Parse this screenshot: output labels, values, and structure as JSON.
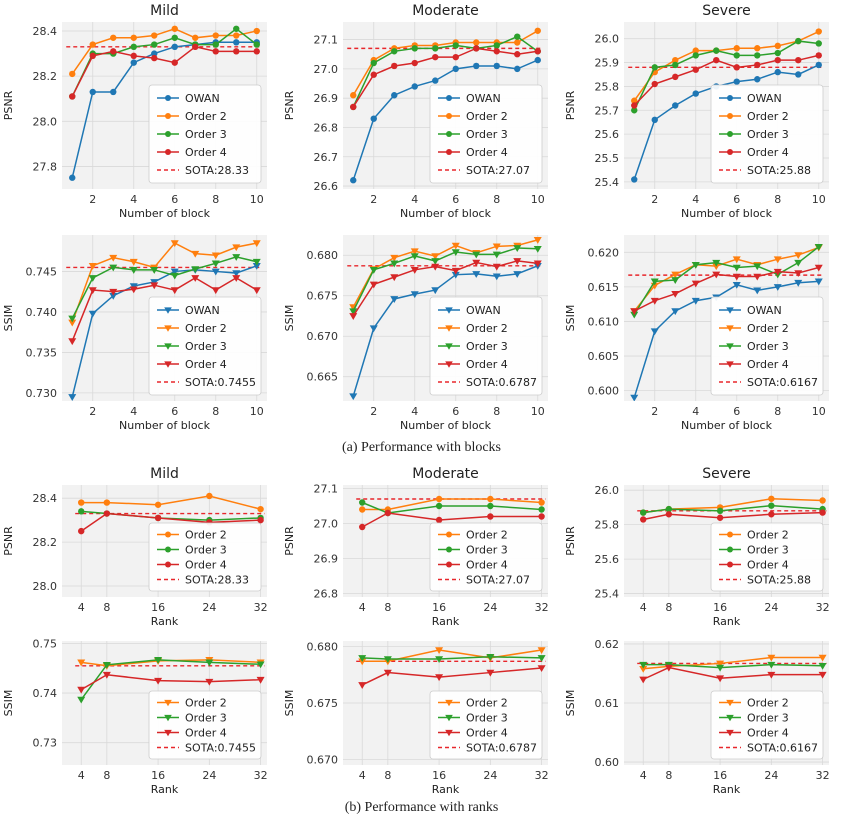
{
  "captions": {
    "blocks": "(a) Performance with blocks",
    "ranks": "(b) Performance with ranks"
  },
  "colors": {
    "OWAN": "#1f77b4",
    "Order 2": "#ff7f0e",
    "Order 3": "#2ca02c",
    "Order 4": "#d62728",
    "SOTA": "#e8262b",
    "grid": "#d9d9d9",
    "face": "#f2f2f2"
  },
  "chart_data": [
    {
      "id": "blocks-psnr-mild",
      "type": "line",
      "marker": "circle",
      "title": "Mild",
      "xlabel": "Number of block",
      "ylabel": "PSNR",
      "xlim": [
        0.5,
        10.5
      ],
      "ylim": [
        27.7,
        28.44
      ],
      "xticks": [
        2,
        4,
        6,
        8,
        10
      ],
      "yticks": [
        27.8,
        28.0,
        28.2,
        28.4
      ],
      "x": [
        1,
        2,
        3,
        4,
        5,
        6,
        7,
        8,
        9,
        10
      ],
      "series": [
        {
          "name": "OWAN",
          "values": [
            27.75,
            28.13,
            28.13,
            28.26,
            28.3,
            28.33,
            28.34,
            28.35,
            28.35,
            28.35
          ]
        },
        {
          "name": "Order 2",
          "values": [
            28.21,
            28.34,
            28.37,
            28.37,
            28.38,
            28.41,
            28.37,
            28.38,
            28.38,
            28.4
          ]
        },
        {
          "name": "Order 3",
          "values": [
            28.11,
            28.3,
            28.3,
            28.33,
            28.34,
            28.37,
            28.34,
            28.34,
            28.41,
            28.34
          ]
        },
        {
          "name": "Order 4",
          "values": [
            28.11,
            28.29,
            28.31,
            28.29,
            28.28,
            28.26,
            28.33,
            28.31,
            28.31,
            28.31
          ]
        }
      ],
      "sota": {
        "value": 28.33,
        "label": "SOTA:28.33"
      },
      "legend": "lower-right"
    },
    {
      "id": "blocks-psnr-moderate",
      "type": "line",
      "marker": "circle",
      "title": "Moderate",
      "xlabel": "Number of block",
      "ylabel": "PSNR",
      "xlim": [
        0.5,
        10.5
      ],
      "ylim": [
        26.59,
        27.16
      ],
      "xticks": [
        2,
        4,
        6,
        8,
        10
      ],
      "yticks": [
        26.6,
        26.7,
        26.8,
        26.9,
        27.0,
        27.1
      ],
      "x": [
        1,
        2,
        3,
        4,
        5,
        6,
        7,
        8,
        9,
        10
      ],
      "series": [
        {
          "name": "OWAN",
          "values": [
            26.62,
            26.83,
            26.91,
            26.94,
            26.96,
            27.0,
            27.01,
            27.01,
            27.0,
            27.03
          ]
        },
        {
          "name": "Order 2",
          "values": [
            26.91,
            27.03,
            27.07,
            27.08,
            27.08,
            27.09,
            27.09,
            27.09,
            27.09,
            27.13
          ]
        },
        {
          "name": "Order 3",
          "values": [
            26.87,
            27.02,
            27.06,
            27.07,
            27.07,
            27.08,
            27.07,
            27.08,
            27.11,
            27.06
          ]
        },
        {
          "name": "Order 4",
          "values": [
            26.87,
            26.98,
            27.01,
            27.02,
            27.04,
            27.04,
            27.07,
            27.06,
            27.05,
            27.06
          ]
        }
      ],
      "sota": {
        "value": 27.07,
        "label": "SOTA:27.07"
      },
      "legend": "lower-right"
    },
    {
      "id": "blocks-psnr-severe",
      "type": "line",
      "marker": "circle",
      "title": "Severe",
      "xlabel": "Number of block",
      "ylabel": "PSNR",
      "xlim": [
        0.5,
        10.5
      ],
      "ylim": [
        25.37,
        26.07
      ],
      "xticks": [
        2,
        4,
        6,
        8,
        10
      ],
      "yticks": [
        25.4,
        25.5,
        25.6,
        25.7,
        25.8,
        25.9,
        26.0
      ],
      "x": [
        1,
        2,
        3,
        4,
        5,
        6,
        7,
        8,
        9,
        10
      ],
      "series": [
        {
          "name": "OWAN",
          "values": [
            25.41,
            25.66,
            25.72,
            25.77,
            25.8,
            25.82,
            25.83,
            25.86,
            25.85,
            25.89
          ]
        },
        {
          "name": "Order 2",
          "values": [
            25.74,
            25.86,
            25.91,
            25.95,
            25.95,
            25.96,
            25.96,
            25.97,
            25.99,
            26.03
          ]
        },
        {
          "name": "Order 3",
          "values": [
            25.7,
            25.88,
            25.89,
            25.93,
            25.95,
            25.93,
            25.93,
            25.94,
            25.99,
            25.98
          ]
        },
        {
          "name": "Order 4",
          "values": [
            25.72,
            25.81,
            25.84,
            25.87,
            25.91,
            25.88,
            25.89,
            25.91,
            25.91,
            25.93
          ]
        }
      ],
      "sota": {
        "value": 25.88,
        "label": "SOTA:25.88"
      },
      "legend": "lower-right"
    },
    {
      "id": "blocks-ssim-mild",
      "type": "line",
      "marker": "triangle-down",
      "title": "",
      "xlabel": "Number of block",
      "ylabel": "SSIM",
      "xlim": [
        0.5,
        10.5
      ],
      "ylim": [
        0.729,
        0.7495
      ],
      "xticks": [
        2,
        4,
        6,
        8,
        10
      ],
      "yticks": [
        0.73,
        0.735,
        0.74,
        0.745
      ],
      "x": [
        1,
        2,
        3,
        4,
        5,
        6,
        7,
        8,
        9,
        10
      ],
      "series": [
        {
          "name": "OWAN",
          "values": [
            0.7295,
            0.7398,
            0.742,
            0.7432,
            0.7437,
            0.745,
            0.7452,
            0.745,
            0.7448,
            0.7457
          ]
        },
        {
          "name": "Order 2",
          "values": [
            0.7387,
            0.7457,
            0.7467,
            0.7462,
            0.7455,
            0.7485,
            0.7472,
            0.747,
            0.748,
            0.7485
          ]
        },
        {
          "name": "Order 3",
          "values": [
            0.7392,
            0.7442,
            0.7455,
            0.7452,
            0.7452,
            0.7445,
            0.7453,
            0.746,
            0.7468,
            0.7462
          ]
        },
        {
          "name": "Order 4",
          "values": [
            0.7364,
            0.7427,
            0.7425,
            0.7428,
            0.7433,
            0.7427,
            0.7442,
            0.7427,
            0.7442,
            0.7427
          ]
        }
      ],
      "sota": {
        "value": 0.7455,
        "label": "SOTA:0.7455"
      },
      "legend": "lower-right"
    },
    {
      "id": "blocks-ssim-moderate",
      "type": "line",
      "marker": "triangle-down",
      "title": "",
      "xlabel": "Number of block",
      "ylabel": "SSIM",
      "xlim": [
        0.5,
        10.5
      ],
      "ylim": [
        0.662,
        0.6825
      ],
      "xticks": [
        2,
        4,
        6,
        8,
        10
      ],
      "yticks": [
        0.665,
        0.67,
        0.675,
        0.68
      ],
      "x": [
        1,
        2,
        3,
        4,
        5,
        6,
        7,
        8,
        9,
        10
      ],
      "series": [
        {
          "name": "OWAN",
          "values": [
            0.6626,
            0.671,
            0.6746,
            0.6752,
            0.6757,
            0.6776,
            0.6777,
            0.6774,
            0.6777,
            0.6787
          ]
        },
        {
          "name": "Order 2",
          "values": [
            0.6736,
            0.6783,
            0.6797,
            0.6805,
            0.6799,
            0.6812,
            0.6803,
            0.6811,
            0.6812,
            0.6819
          ]
        },
        {
          "name": "Order 3",
          "values": [
            0.6731,
            0.6782,
            0.679,
            0.6799,
            0.6793,
            0.6804,
            0.6801,
            0.6801,
            0.6809,
            0.6808
          ]
        },
        {
          "name": "Order 4",
          "values": [
            0.6725,
            0.6764,
            0.6773,
            0.6782,
            0.6786,
            0.6781,
            0.6791,
            0.6786,
            0.6793,
            0.679
          ]
        }
      ],
      "sota": {
        "value": 0.6787,
        "label": "SOTA:0.6787"
      },
      "legend": "lower-right"
    },
    {
      "id": "blocks-ssim-severe",
      "type": "line",
      "marker": "triangle-down",
      "title": "",
      "xlabel": "Number of block",
      "ylabel": "SSIM",
      "xlim": [
        0.5,
        10.5
      ],
      "ylim": [
        0.5985,
        0.6225
      ],
      "xticks": [
        2,
        4,
        6,
        8,
        10
      ],
      "yticks": [
        0.6,
        0.605,
        0.61,
        0.615,
        0.62
      ],
      "x": [
        1,
        2,
        3,
        4,
        5,
        6,
        7,
        8,
        9,
        10
      ],
      "series": [
        {
          "name": "OWAN",
          "values": [
            0.599,
            0.6086,
            0.6115,
            0.613,
            0.6135,
            0.6153,
            0.6145,
            0.615,
            0.6156,
            0.6158
          ]
        },
        {
          "name": "Order 2",
          "values": [
            0.6115,
            0.6152,
            0.6168,
            0.6182,
            0.618,
            0.619,
            0.6182,
            0.619,
            0.6196,
            0.6207
          ]
        },
        {
          "name": "Order 3",
          "values": [
            0.611,
            0.6158,
            0.616,
            0.6182,
            0.6185,
            0.6178,
            0.618,
            0.6168,
            0.6185,
            0.6208
          ]
        },
        {
          "name": "Order 4",
          "values": [
            0.6115,
            0.613,
            0.614,
            0.6155,
            0.6168,
            0.6165,
            0.6165,
            0.6172,
            0.617,
            0.6178
          ]
        }
      ],
      "sota": {
        "value": 0.6167,
        "label": "SOTA:0.6167"
      },
      "legend": "lower-right"
    },
    {
      "id": "ranks-psnr-mild",
      "type": "line",
      "marker": "circle",
      "title": "Mild",
      "xlabel": "Rank",
      "ylabel": "PSNR",
      "xlim": [
        1,
        33
      ],
      "ylim": [
        27.95,
        28.46
      ],
      "xticks": [
        4,
        8,
        16,
        24,
        32
      ],
      "yticks": [
        28.0,
        28.2,
        28.4
      ],
      "x": [
        4,
        8,
        16,
        24,
        32
      ],
      "series": [
        {
          "name": "Order 2",
          "values": [
            28.38,
            28.38,
            28.37,
            28.41,
            28.35
          ]
        },
        {
          "name": "Order 3",
          "values": [
            28.34,
            28.33,
            28.31,
            28.3,
            28.31
          ]
        },
        {
          "name": "Order 4",
          "values": [
            28.25,
            28.33,
            28.31,
            28.29,
            28.3
          ]
        }
      ],
      "sota": {
        "value": 28.33,
        "label": "SOTA:28.33"
      },
      "legend": "lower-right"
    },
    {
      "id": "ranks-psnr-moderate",
      "type": "line",
      "marker": "circle",
      "title": "Moderate",
      "xlabel": "Rank",
      "ylabel": "PSNR",
      "xlim": [
        1,
        33
      ],
      "ylim": [
        26.79,
        27.11
      ],
      "xticks": [
        4,
        8,
        16,
        24,
        32
      ],
      "yticks": [
        26.8,
        26.9,
        27.0,
        27.1
      ],
      "x": [
        4,
        8,
        16,
        24,
        32
      ],
      "series": [
        {
          "name": "Order 2",
          "values": [
            27.04,
            27.04,
            27.07,
            27.07,
            27.06
          ]
        },
        {
          "name": "Order 3",
          "values": [
            27.06,
            27.03,
            27.05,
            27.05,
            27.04
          ]
        },
        {
          "name": "Order 4",
          "values": [
            26.99,
            27.03,
            27.01,
            27.02,
            27.02
          ]
        }
      ],
      "sota": {
        "value": 27.07,
        "label": "SOTA:27.07"
      },
      "legend": "lower-right"
    },
    {
      "id": "ranks-psnr-severe",
      "type": "line",
      "marker": "circle",
      "title": "Severe",
      "xlabel": "Rank",
      "ylabel": "PSNR",
      "xlim": [
        1,
        33
      ],
      "ylim": [
        25.38,
        26.03
      ],
      "xticks": [
        4,
        8,
        16,
        24,
        32
      ],
      "yticks": [
        25.4,
        25.6,
        25.8,
        26.0
      ],
      "x": [
        4,
        8,
        16,
        24,
        32
      ],
      "series": [
        {
          "name": "Order 2",
          "values": [
            25.87,
            25.89,
            25.9,
            25.95,
            25.94
          ]
        },
        {
          "name": "Order 3",
          "values": [
            25.87,
            25.89,
            25.88,
            25.91,
            25.89
          ]
        },
        {
          "name": "Order 4",
          "values": [
            25.83,
            25.86,
            25.84,
            25.86,
            25.87
          ]
        }
      ],
      "sota": {
        "value": 25.88,
        "label": "SOTA:25.88"
      },
      "legend": "lower-right"
    },
    {
      "id": "ranks-ssim-mild",
      "type": "line",
      "marker": "triangle-down",
      "title": "",
      "xlabel": "Rank",
      "ylabel": "SSIM",
      "xlim": [
        1,
        33
      ],
      "ylim": [
        0.7255,
        0.7505
      ],
      "xticks": [
        4,
        8,
        16,
        24,
        32
      ],
      "yticks": [
        0.73,
        0.74,
        0.75
      ],
      "x": [
        4,
        8,
        16,
        24,
        32
      ],
      "series": [
        {
          "name": "Order 2",
          "values": [
            0.7462,
            0.7455,
            0.7465,
            0.7467,
            0.7462
          ]
        },
        {
          "name": "Order 3",
          "values": [
            0.7387,
            0.7457,
            0.7467,
            0.7462,
            0.7458
          ]
        },
        {
          "name": "Order 4",
          "values": [
            0.7407,
            0.7437,
            0.7425,
            0.7423,
            0.7427
          ]
        }
      ],
      "sota": {
        "value": 0.7455,
        "label": "SOTA:0.7455"
      },
      "legend": "lower-right"
    },
    {
      "id": "ranks-ssim-moderate",
      "type": "line",
      "marker": "triangle-down",
      "title": "",
      "xlabel": "Rank",
      "ylabel": "SSIM",
      "xlim": [
        1,
        33
      ],
      "ylim": [
        0.6695,
        0.6805
      ],
      "xticks": [
        4,
        8,
        16,
        24,
        32
      ],
      "yticks": [
        0.67,
        0.675,
        0.68
      ],
      "x": [
        4,
        8,
        16,
        24,
        32
      ],
      "series": [
        {
          "name": "Order 2",
          "values": [
            0.6787,
            0.6787,
            0.6797,
            0.679,
            0.6797
          ]
        },
        {
          "name": "Order 3",
          "values": [
            0.679,
            0.6789,
            0.6789,
            0.6791,
            0.679
          ]
        },
        {
          "name": "Order 4",
          "values": [
            0.6766,
            0.6777,
            0.6773,
            0.6777,
            0.6781
          ]
        }
      ],
      "sota": {
        "value": 0.6787,
        "label": "SOTA:0.6787"
      },
      "legend": "lower-right"
    },
    {
      "id": "ranks-ssim-severe",
      "type": "line",
      "marker": "triangle-down",
      "title": "",
      "xlabel": "Rank",
      "ylabel": "SSIM",
      "xlim": [
        1,
        33
      ],
      "ylim": [
        0.5995,
        0.6205
      ],
      "xticks": [
        4,
        8,
        16,
        24,
        32
      ],
      "yticks": [
        0.6,
        0.61,
        0.62
      ],
      "x": [
        4,
        8,
        16,
        24,
        32
      ],
      "series": [
        {
          "name": "Order 2",
          "values": [
            0.6158,
            0.6162,
            0.6167,
            0.6177,
            0.6177
          ]
        },
        {
          "name": "Order 3",
          "values": [
            0.6165,
            0.6165,
            0.616,
            0.6165,
            0.6163
          ]
        },
        {
          "name": "Order 4",
          "values": [
            0.614,
            0.616,
            0.6142,
            0.6148,
            0.6148
          ]
        }
      ],
      "sota": {
        "value": 0.6167,
        "label": "SOTA:0.6167"
      },
      "legend": "lower-right"
    }
  ]
}
